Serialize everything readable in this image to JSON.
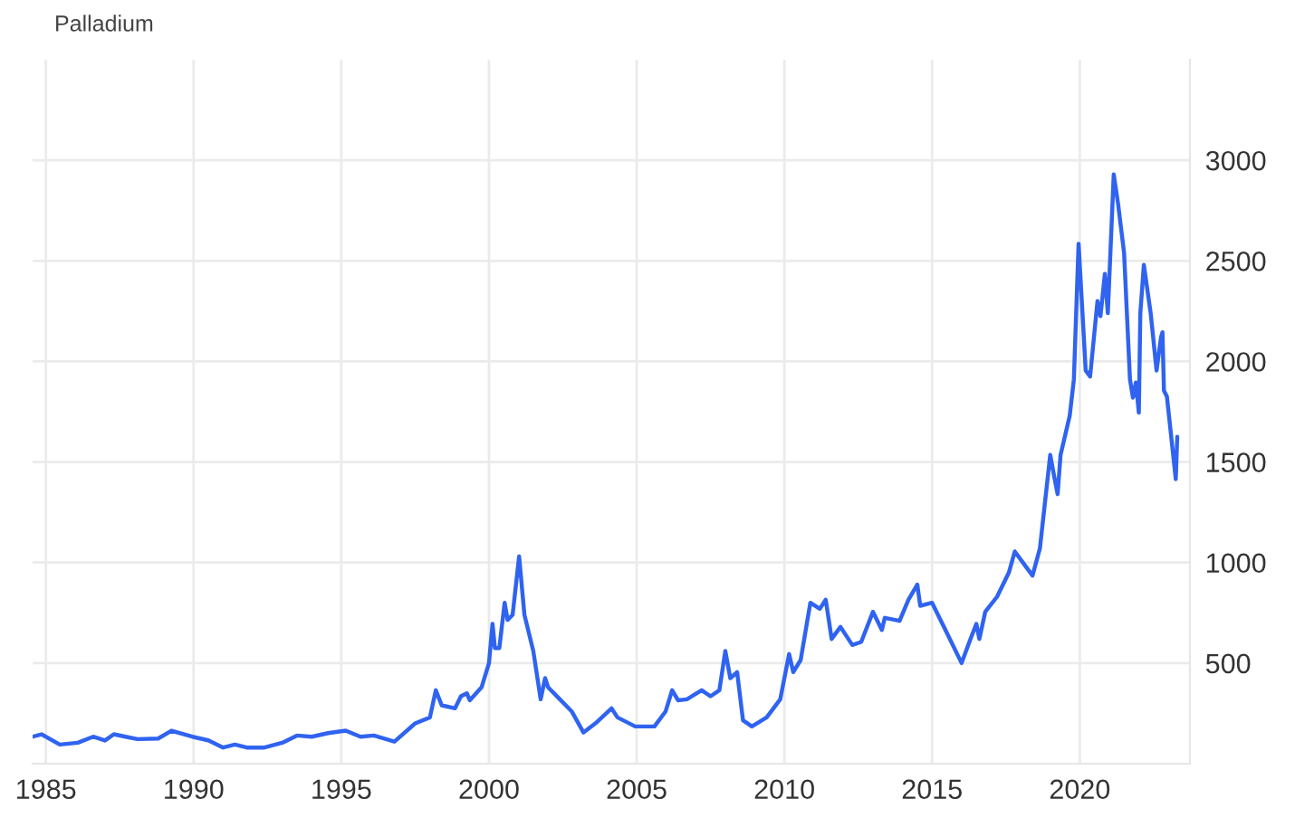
{
  "chart_data": {
    "type": "line",
    "title": "Palladium",
    "xlim": [
      1984.55,
      2023.73
    ],
    "xticks": [
      1985,
      1990,
      1995,
      2000,
      2005,
      2010,
      2015,
      2020
    ],
    "ylim": [
      0,
      3500
    ],
    "yticks": [
      500,
      1000,
      1500,
      2000,
      2500,
      3000
    ],
    "grid": true,
    "series": [
      {
        "color": "#2f63f0",
        "x": [
          1984.55,
          1984.85,
          1985.47,
          1986.08,
          1986.6,
          1987,
          1987.3,
          1987.7,
          1988.1,
          1988.8,
          1989.25,
          1989.96,
          1990.5,
          1991,
          1991.4,
          1991.8,
          1992.4,
          1993,
          1993.5,
          1994,
          1994.55,
          1995.15,
          1995.65,
          1996.1,
          1996.8,
          1997.5,
          1998,
          1998.2,
          1998.4,
          1998.85,
          1999.05,
          1999.25,
          1999.35,
          1999.75,
          2000,
          2000.12,
          2000.2,
          2000.35,
          2000.53,
          2000.63,
          2000.8,
          2001.02,
          2001.2,
          2001.5,
          2001.75,
          2001.9,
          2002,
          2002.4,
          2002.8,
          2003.2,
          2003.6,
          2004.15,
          2004.35,
          2004.95,
          2005.6,
          2005.98,
          2006.2,
          2006.4,
          2006.7,
          2007.2,
          2007.5,
          2007.8,
          2008,
          2008.17,
          2008.4,
          2008.6,
          2008.9,
          2009.4,
          2009.86,
          2010.16,
          2010.3,
          2010.55,
          2010.88,
          2011.2,
          2011.4,
          2011.6,
          2011.9,
          2012.3,
          2012.6,
          2013,
          2013.3,
          2013.4,
          2013.9,
          2014.2,
          2014.5,
          2014.6,
          2015,
          2015.2,
          2015.4,
          2016,
          2016.3,
          2016.5,
          2016.6,
          2016.8,
          2017.2,
          2017.6,
          2017.8,
          2018.1,
          2018.4,
          2018.65,
          2019,
          2019.15,
          2019.25,
          2019.35,
          2019.66,
          2019.8,
          2019.96,
          2020.2,
          2020.35,
          2020.6,
          2020.7,
          2020.85,
          2020.95,
          2021.15,
          2021.3,
          2021.5,
          2021.7,
          2021.8,
          2021.9,
          2022,
          2022.05,
          2022.17,
          2022.4,
          2022.6,
          2022.75,
          2022.8,
          2022.85,
          2022.95,
          2023.25,
          2023.3
        ],
        "values": [
          134,
          146,
          95,
          104,
          134,
          115,
          146,
          134,
          122,
          125,
          164,
          134,
          116,
          80,
          95,
          80,
          80,
          104,
          140,
          134,
          152,
          164,
          134,
          140,
          110,
          200,
          230,
          365,
          290,
          275,
          335,
          350,
          315,
          380,
          500,
          695,
          575,
          575,
          800,
          715,
          740,
          1030,
          740,
          560,
          320,
          425,
          380,
          320,
          260,
          155,
          200,
          275,
          230,
          185,
          185,
          260,
          365,
          315,
          320,
          365,
          335,
          365,
          560,
          425,
          455,
          215,
          185,
          230,
          320,
          545,
          455,
          515,
          800,
          770,
          815,
          620,
          680,
          590,
          605,
          755,
          665,
          725,
          710,
          815,
          890,
          785,
          800,
          740,
          680,
          500,
          620,
          695,
          620,
          755,
          830,
          950,
          1055,
          995,
          935,
          1070,
          1535,
          1415,
          1340,
          1535,
          1730,
          1910,
          2585,
          1955,
          1925,
          2300,
          2225,
          2435,
          2240,
          2930,
          2780,
          2540,
          1910,
          1820,
          1895,
          1745,
          2240,
          2480,
          2240,
          1955,
          2120,
          2145,
          1855,
          1825,
          1415,
          1625
        ]
      }
    ]
  }
}
